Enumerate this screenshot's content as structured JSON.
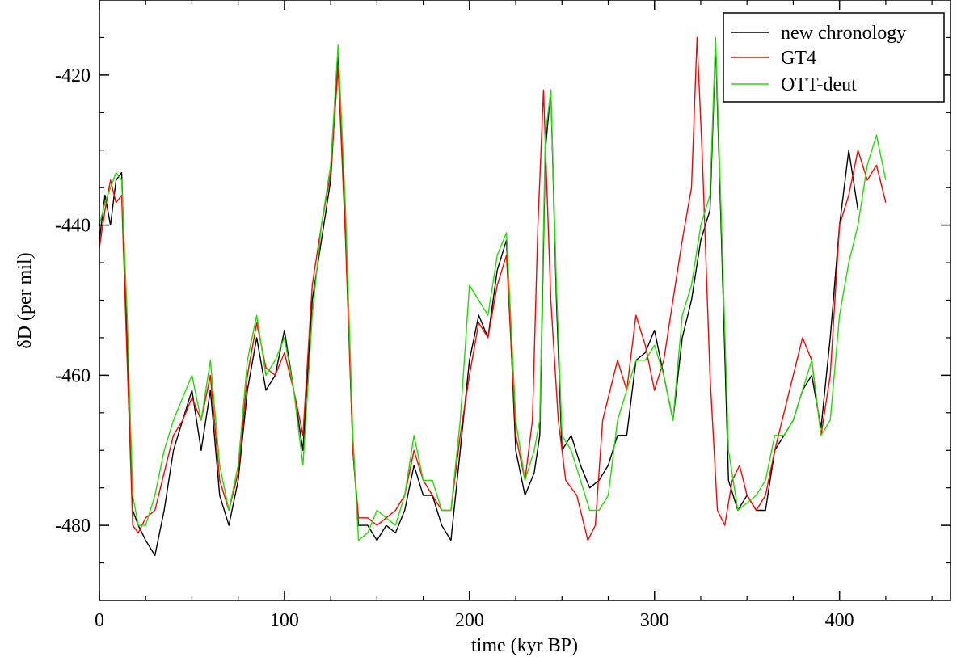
{
  "chart_data": {
    "type": "line",
    "title": "",
    "xlabel": "time (kyr BP)",
    "ylabel": "δD (per mil)",
    "xlim": [
      0,
      460
    ],
    "ylim": [
      -490,
      -410
    ],
    "xticks": [
      0,
      100,
      200,
      300,
      400
    ],
    "yticks": [
      -420,
      -440,
      -460,
      -480
    ],
    "grid": false,
    "legend_position": "top-right",
    "series": [
      {
        "name": "new chronology",
        "color": "#000000",
        "x": [
          0,
          3,
          6,
          9,
          12,
          15,
          18,
          21,
          25,
          30,
          35,
          40,
          45,
          50,
          55,
          60,
          65,
          70,
          75,
          80,
          85,
          90,
          95,
          100,
          105,
          110,
          115,
          120,
          125,
          129,
          133,
          137,
          140,
          145,
          150,
          155,
          160,
          165,
          170,
          175,
          180,
          185,
          190,
          195,
          200,
          205,
          210,
          215,
          220,
          225,
          230,
          235,
          238,
          241,
          244,
          247,
          250,
          255,
          260,
          265,
          270,
          275,
          280,
          285,
          290,
          295,
          300,
          305,
          310,
          315,
          320,
          325,
          330,
          333,
          336,
          340,
          345,
          350,
          355,
          360,
          365,
          370,
          375,
          380,
          385,
          390,
          395,
          400,
          405,
          410
        ],
        "values": [
          -442,
          -436,
          -440,
          -434,
          -433,
          -455,
          -478,
          -480,
          -482,
          -484,
          -478,
          -470,
          -466,
          -462,
          -470,
          -462,
          -476,
          -480,
          -474,
          -462,
          -455,
          -462,
          -460,
          -454,
          -462,
          -470,
          -450,
          -442,
          -434,
          -417,
          -440,
          -470,
          -480,
          -480,
          -482,
          -480,
          -481,
          -478,
          -472,
          -476,
          -476,
          -480,
          -482,
          -470,
          -458,
          -452,
          -455,
          -446,
          -442,
          -470,
          -476,
          -473,
          -468,
          -430,
          -422,
          -450,
          -470,
          -468,
          -472,
          -475,
          -474,
          -472,
          -468,
          -468,
          -458,
          -457,
          -454,
          -460,
          -466,
          -455,
          -450,
          -442,
          -438,
          -416,
          -440,
          -474,
          -478,
          -476,
          -478,
          -478,
          -470,
          -468,
          -466,
          -462,
          -460,
          -467,
          -455,
          -440,
          -430,
          -438
        ]
      },
      {
        "name": "GT4",
        "color": "#ff0000",
        "x": [
          0,
          3,
          6,
          9,
          12,
          15,
          18,
          21,
          25,
          30,
          35,
          40,
          45,
          50,
          55,
          60,
          65,
          70,
          75,
          80,
          85,
          90,
          95,
          100,
          105,
          110,
          115,
          120,
          125,
          129,
          133,
          137,
          140,
          145,
          150,
          155,
          160,
          165,
          170,
          175,
          180,
          185,
          190,
          195,
          200,
          205,
          210,
          215,
          220,
          225,
          230,
          234,
          237,
          240,
          244,
          248,
          252,
          258,
          264,
          268,
          272,
          276,
          280,
          285,
          290,
          295,
          300,
          305,
          310,
          315,
          320,
          323,
          326,
          330,
          334,
          338,
          342,
          346,
          350,
          355,
          360,
          365,
          370,
          375,
          380,
          385,
          390,
          395,
          400,
          405,
          410,
          415,
          420,
          425
        ],
        "values": [
          -443,
          -438,
          -434,
          -437,
          -436,
          -458,
          -480,
          -481,
          -479,
          -478,
          -473,
          -468,
          -466,
          -463,
          -466,
          -460,
          -474,
          -478,
          -473,
          -460,
          -453,
          -459,
          -460,
          -457,
          -462,
          -468,
          -448,
          -440,
          -433,
          -419,
          -442,
          -470,
          -479,
          -479,
          -480,
          -479,
          -478,
          -476,
          -470,
          -474,
          -476,
          -478,
          -478,
          -468,
          -460,
          -453,
          -455,
          -448,
          -444,
          -468,
          -474,
          -466,
          -440,
          -422,
          -450,
          -466,
          -474,
          -476,
          -482,
          -480,
          -466,
          -462,
          -458,
          -462,
          -452,
          -456,
          -462,
          -458,
          -450,
          -442,
          -435,
          -415,
          -432,
          -460,
          -478,
          -480,
          -474,
          -472,
          -476,
          -478,
          -476,
          -470,
          -465,
          -460,
          -455,
          -458,
          -468,
          -460,
          -440,
          -436,
          -430,
          -434,
          -432,
          -437
        ]
      },
      {
        "name": "OTT-deut",
        "color": "#22dd00",
        "x": [
          0,
          3,
          6,
          9,
          12,
          15,
          18,
          21,
          25,
          30,
          35,
          40,
          45,
          50,
          55,
          60,
          65,
          70,
          75,
          80,
          85,
          90,
          95,
          100,
          105,
          110,
          115,
          120,
          125,
          129,
          133,
          137,
          140,
          145,
          150,
          155,
          160,
          165,
          170,
          175,
          180,
          185,
          190,
          195,
          200,
          205,
          210,
          215,
          220,
          225,
          230,
          235,
          238,
          241,
          244,
          247,
          250,
          255,
          260,
          265,
          270,
          275,
          280,
          285,
          290,
          295,
          300,
          305,
          310,
          315,
          320,
          325,
          330,
          333,
          336,
          340,
          345,
          350,
          355,
          360,
          365,
          370,
          375,
          380,
          385,
          390,
          395,
          400,
          405,
          410,
          415,
          420,
          425
        ],
        "values": [
          -440,
          -437,
          -435,
          -433,
          -434,
          -452,
          -476,
          -480,
          -480,
          -476,
          -470,
          -466,
          -463,
          -460,
          -466,
          -458,
          -472,
          -478,
          -472,
          -458,
          -452,
          -460,
          -458,
          -455,
          -462,
          -472,
          -452,
          -440,
          -432,
          -416,
          -438,
          -468,
          -482,
          -481,
          -478,
          -479,
          -480,
          -476,
          -468,
          -474,
          -474,
          -478,
          -478,
          -466,
          -448,
          -450,
          -452,
          -444,
          -441,
          -466,
          -474,
          -470,
          -466,
          -428,
          -422,
          -448,
          -468,
          -470,
          -474,
          -478,
          -478,
          -476,
          -466,
          -462,
          -458,
          -458,
          -456,
          -460,
          -466,
          -452,
          -448,
          -440,
          -436,
          -415,
          -438,
          -470,
          -478,
          -477,
          -476,
          -474,
          -468,
          -468,
          -466,
          -462,
          -458,
          -468,
          -466,
          -452,
          -445,
          -440,
          -432,
          -428,
          -434
        ]
      }
    ]
  }
}
